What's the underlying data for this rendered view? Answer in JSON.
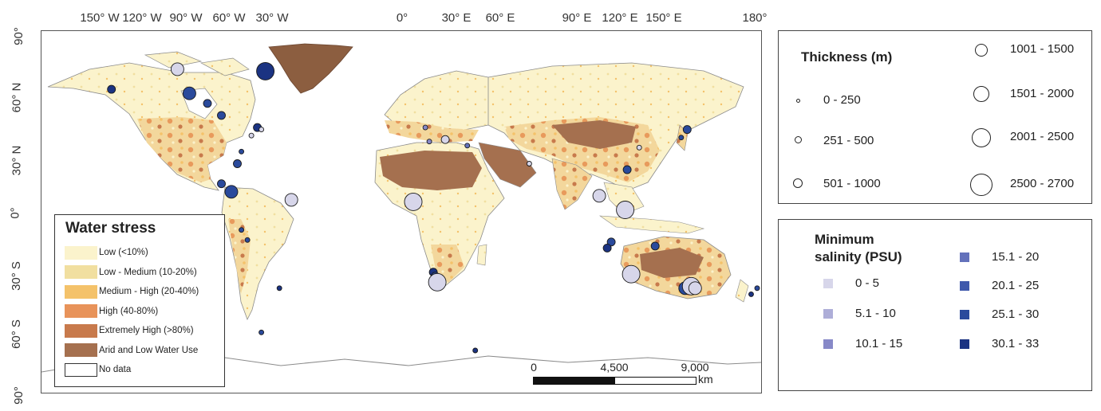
{
  "axes": {
    "lon_labels": [
      "150° W",
      "120° W",
      "90° W",
      "60° W",
      "30° W",
      "0°",
      "30° E",
      "60° E",
      "90° E",
      "120° E",
      "150° E",
      "180°"
    ],
    "lat_labels": [
      "90°",
      "60° N",
      "30° N",
      "0°",
      "30° S",
      "60° S",
      "90°"
    ]
  },
  "water_stress": {
    "title": "Water stress",
    "items": [
      {
        "label": "Low (<10%)",
        "color": "#fbf3cc"
      },
      {
        "label": "Low - Medium (10-20%)",
        "color": "#f1dfa0"
      },
      {
        "label": "Medium - High (20-40%)",
        "color": "#f4c26a"
      },
      {
        "label": "High (40-80%)",
        "color": "#e8935a"
      },
      {
        "label": "Extremely High (>80%)",
        "color": "#c87a4c"
      },
      {
        "label": "Arid and Low Water Use",
        "color": "#a5704f"
      },
      {
        "label": "No data",
        "color": "#ffffff"
      }
    ]
  },
  "thickness": {
    "title": "Thickness (m)",
    "items": [
      "0 - 250",
      "251 - 500",
      "501 - 1000",
      "1001 - 1500",
      "1501 - 2000",
      "2001 - 2500",
      "2500 - 2700"
    ]
  },
  "salinity": {
    "title_line1": "Minimum",
    "title_line2": "salinity (PSU)",
    "items": [
      {
        "label": "0 - 5",
        "color": "#d7d6ea"
      },
      {
        "label": "5.1 - 10",
        "color": "#aeaed8"
      },
      {
        "label": "10.1 - 15",
        "color": "#8789c8"
      },
      {
        "label": "15.1 - 20",
        "color": "#6371bb"
      },
      {
        "label": "20.1 - 25",
        "color": "#3f59ac"
      },
      {
        "label": "25.1 - 30",
        "color": "#2a4a9c"
      },
      {
        "label": "30.1 - 33",
        "color": "#1b3382"
      }
    ]
  },
  "scale_bar": {
    "ticks": [
      "0",
      "4,500",
      "9,000"
    ],
    "unit": "km"
  },
  "colors": {
    "ocean": "#ffffff",
    "border": "#8b8b8b",
    "greenland": "#8c5e40",
    "sites_stroke": "#1a1a1a"
  },
  "sites": [
    {
      "lon": -145,
      "lat": 61,
      "size": 1,
      "sal": 6
    },
    {
      "lon": -112,
      "lat": 71,
      "size": 2,
      "sal": 0
    },
    {
      "lon": -106,
      "lat": 59,
      "size": 2,
      "sal": 5
    },
    {
      "lon": -97,
      "lat": 54,
      "size": 1,
      "sal": 5
    },
    {
      "lon": -90,
      "lat": 48,
      "size": 1,
      "sal": 5
    },
    {
      "lon": -68,
      "lat": 70,
      "size": 3,
      "sal": 6
    },
    {
      "lon": -72,
      "lat": 42,
      "size": 1,
      "sal": 6
    },
    {
      "lon": -70,
      "lat": 41,
      "size": 0,
      "sal": 0
    },
    {
      "lon": -75,
      "lat": 38,
      "size": 0,
      "sal": 0
    },
    {
      "lon": -80,
      "lat": 30,
      "size": 0,
      "sal": 5
    },
    {
      "lon": -82,
      "lat": 24,
      "size": 1,
      "sal": 5
    },
    {
      "lon": -90,
      "lat": 14,
      "size": 1,
      "sal": 5
    },
    {
      "lon": -85,
      "lat": 10,
      "size": 2,
      "sal": 5
    },
    {
      "lon": -55,
      "lat": 6,
      "size": 2,
      "sal": 0
    },
    {
      "lon": -80,
      "lat": -9,
      "size": 0,
      "sal": 5
    },
    {
      "lon": -77,
      "lat": -14,
      "size": 0,
      "sal": 5
    },
    {
      "lon": -61,
      "lat": -38,
      "size": 0,
      "sal": 6
    },
    {
      "lon": -172,
      "lat": -76,
      "size": 0,
      "sal": 5
    },
    {
      "lon": 6,
      "lat": 5,
      "size": 3,
      "sal": 0
    },
    {
      "lon": 22,
      "lat": 36,
      "size": 1,
      "sal": 0
    },
    {
      "lon": 12,
      "lat": 42,
      "size": 0,
      "sal": 2
    },
    {
      "lon": 14,
      "lat": 35,
      "size": 0,
      "sal": 2
    },
    {
      "lon": 33,
      "lat": 33,
      "size": 0,
      "sal": 3
    },
    {
      "lon": 64,
      "lat": 24,
      "size": 0,
      "sal": 0
    },
    {
      "lon": 16,
      "lat": -30,
      "size": 1,
      "sal": 6
    },
    {
      "lon": 17,
      "lat": -32,
      "size": 1,
      "sal": 5
    },
    {
      "lon": 18,
      "lat": -35,
      "size": 3,
      "sal": 0
    },
    {
      "lon": 99,
      "lat": 8,
      "size": 2,
      "sal": 0
    },
    {
      "lon": 112,
      "lat": 1,
      "size": 3,
      "sal": 0
    },
    {
      "lon": 113,
      "lat": 21,
      "size": 1,
      "sal": 5
    },
    {
      "lon": 119,
      "lat": 32,
      "size": 0,
      "sal": 0
    },
    {
      "lon": 143,
      "lat": 41,
      "size": 1,
      "sal": 5
    },
    {
      "lon": 140,
      "lat": 37,
      "size": 0,
      "sal": 5
    },
    {
      "lon": 105,
      "lat": -15,
      "size": 1,
      "sal": 5
    },
    {
      "lon": 103,
      "lat": -18,
      "size": 1,
      "sal": 6
    },
    {
      "lon": 115,
      "lat": -31,
      "size": 3,
      "sal": 0
    },
    {
      "lon": 127,
      "lat": -17,
      "size": 1,
      "sal": 5
    },
    {
      "lon": 142,
      "lat": -38,
      "size": 2,
      "sal": 5
    },
    {
      "lon": 145,
      "lat": -37,
      "size": 3,
      "sal": 0
    },
    {
      "lon": 147,
      "lat": -38,
      "size": 2,
      "sal": 0
    },
    {
      "lon": 175,
      "lat": -41,
      "size": 0,
      "sal": 6
    },
    {
      "lon": 178,
      "lat": -38,
      "size": 0,
      "sal": 5
    },
    {
      "lon": 37,
      "lat": -69,
      "size": 0,
      "sal": 6
    },
    {
      "lon": -70,
      "lat": -60,
      "size": 0,
      "sal": 5
    }
  ]
}
